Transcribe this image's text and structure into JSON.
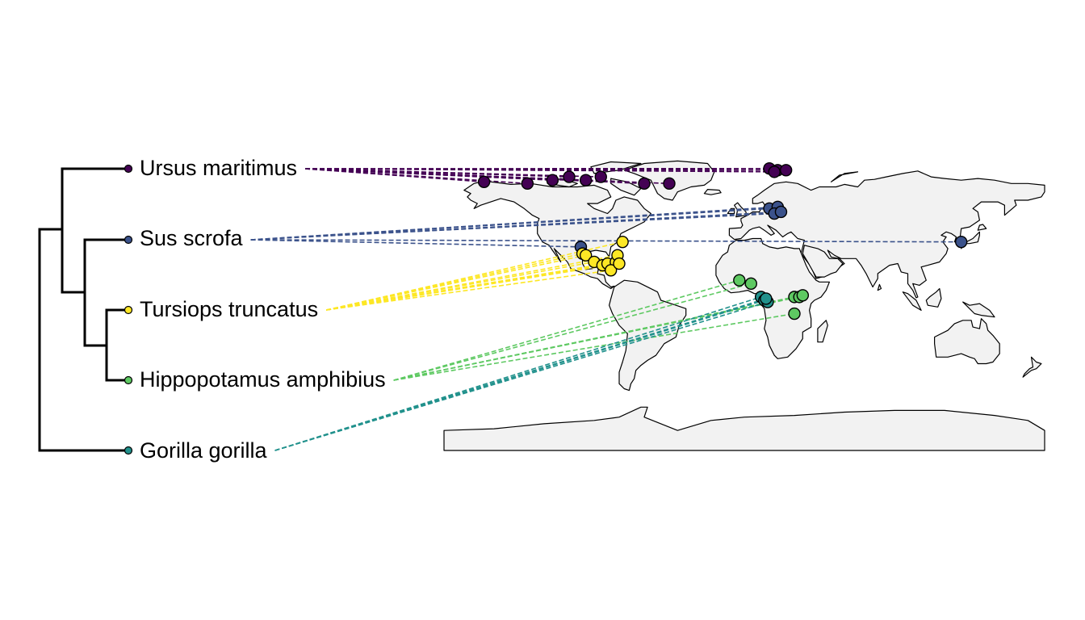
{
  "colors": {
    "tree": "#000000",
    "land_fill": "#f2f2f2",
    "land_stroke": "#000000",
    "background": "#ffffff"
  },
  "taxa": [
    {
      "id": "ursus",
      "label": "Ursus maritimus",
      "color": "#440154",
      "locations": [
        [
          -156,
          71
        ],
        [
          -86,
          74
        ],
        [
          -95,
          72
        ],
        [
          -105,
          74
        ],
        [
          -115,
          72
        ],
        [
          -130,
          70
        ],
        [
          -60,
          70
        ],
        [
          -45,
          70
        ],
        [
          20,
          78
        ],
        [
          15,
          79
        ],
        [
          25,
          78
        ],
        [
          18,
          77
        ]
      ]
    },
    {
      "id": "sus",
      "label": "Sus scrofa",
      "color": "#3b528b",
      "locations": [
        [
          15,
          55
        ],
        [
          20,
          56
        ],
        [
          18,
          52
        ],
        [
          22,
          53
        ],
        [
          -98,
          32
        ],
        [
          130,
          35
        ]
      ]
    },
    {
      "id": "tursiops",
      "label": "Tursiops truncatus",
      "color": "#fde725",
      "locations": [
        [
          -97,
          28
        ],
        [
          -95,
          27
        ],
        [
          -90,
          23
        ],
        [
          -85,
          21
        ],
        [
          -82,
          22
        ],
        [
          -77,
          23
        ],
        [
          -76,
          27
        ],
        [
          -73,
          35
        ],
        [
          -80,
          18
        ],
        [
          -75,
          22
        ]
      ]
    },
    {
      "id": "hippo",
      "label": "Hippopotamus amphibius",
      "color": "#5ec962",
      "locations": [
        [
          -3,
          12
        ],
        [
          4,
          10
        ],
        [
          30,
          2
        ],
        [
          33,
          2
        ],
        [
          35,
          3
        ],
        [
          30,
          -8
        ]
      ]
    },
    {
      "id": "gorilla",
      "label": "Gorilla gorilla",
      "color": "#21918c",
      "locations": [
        [
          10,
          2
        ],
        [
          12,
          0
        ],
        [
          14,
          -1
        ],
        [
          13,
          1
        ]
      ]
    }
  ],
  "tree": {
    "tips": [
      "ursus",
      "sus",
      "tursiops",
      "hippo",
      "gorilla"
    ]
  }
}
